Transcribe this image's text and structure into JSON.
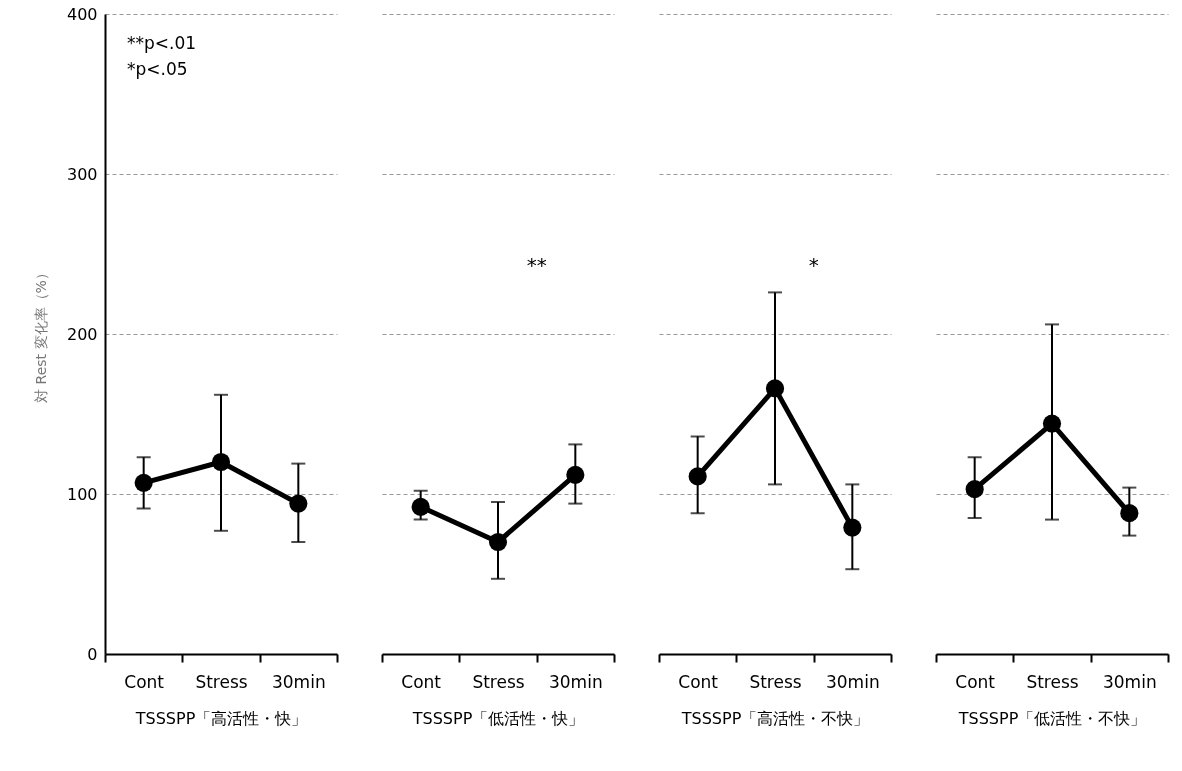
{
  "chart_data": [
    {
      "type": "line",
      "categories": [
        "Cont",
        "Stress",
        "30min"
      ],
      "xlabel": "TSSSPP「高活性・快」",
      "ylabel": "対 Rest 変化率（%）",
      "ylim": [
        0,
        400
      ],
      "yticks": [
        0,
        100,
        200,
        300,
        400
      ],
      "grid": "y",
      "marker": "circle",
      "annotations": [
        "**p<.01",
        "*p<.05"
      ],
      "series": [
        {
          "color": "#000000",
          "values": [
            107,
            120,
            94
          ],
          "errors": [
            [
              91,
              123
            ],
            [
              77,
              162
            ],
            [
              70,
              119
            ]
          ]
        }
      ]
    },
    {
      "type": "line",
      "categories": [
        "Cont",
        "Stress",
        "30min"
      ],
      "xlabel": "TSSSPP「低活性・快」",
      "ylim": [
        0,
        400
      ],
      "yticks": [
        0,
        100,
        200,
        300,
        400
      ],
      "grid": "y",
      "marker": "circle",
      "tick_labels": "x",
      "annotations": [
        "**"
      ],
      "series": [
        {
          "color": "#000000",
          "values": [
            92,
            70,
            112
          ],
          "errors": [
            [
              84,
              102
            ],
            [
              47,
              95
            ],
            [
              94,
              131
            ]
          ]
        }
      ]
    },
    {
      "type": "line",
      "categories": [
        "Cont",
        "Stress",
        "30min"
      ],
      "xlabel": "TSSSPP「高活性・不快」",
      "ylim": [
        0,
        400
      ],
      "yticks": [
        0,
        100,
        200,
        300,
        400
      ],
      "grid": "y",
      "marker": "circle",
      "tick_labels": "x",
      "annotations": [
        "*"
      ],
      "series": [
        {
          "color": "#000000",
          "values": [
            111,
            166,
            79
          ],
          "errors": [
            [
              88,
              136
            ],
            [
              106,
              226
            ],
            [
              53,
              106
            ]
          ]
        }
      ]
    },
    {
      "type": "line",
      "categories": [
        "Cont",
        "Stress",
        "30min"
      ],
      "xlabel": "TSSSPP「低活性・不快」",
      "ylim": [
        0,
        400
      ],
      "yticks": [
        0,
        100,
        200,
        300,
        400
      ],
      "grid": "y",
      "marker": "circle",
      "tick_labels": "x",
      "series": [
        {
          "color": "#000000",
          "values": [
            103,
            144,
            88
          ],
          "errors": [
            [
              85,
              123
            ],
            [
              84,
              206
            ],
            [
              74,
              104
            ]
          ]
        }
      ]
    }
  ]
}
